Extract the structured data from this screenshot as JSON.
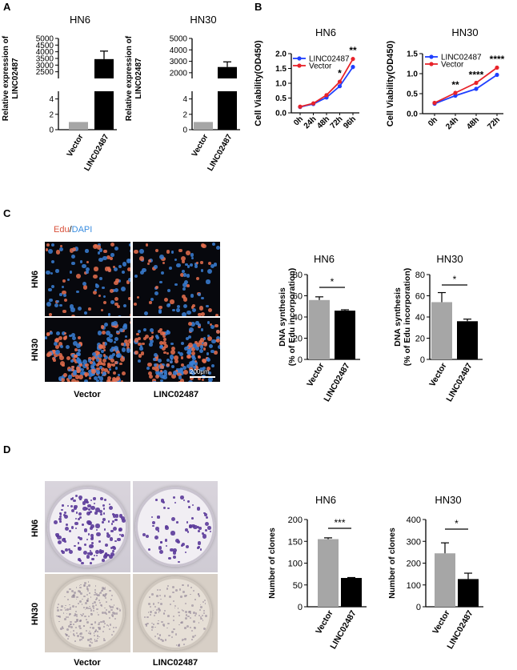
{
  "panels": {
    "A": {
      "letter": "A"
    },
    "B": {
      "letter": "B"
    },
    "C": {
      "letter": "C",
      "stain_edu": "Edu",
      "stain_sep": "/",
      "stain_dapi": "DAPI",
      "row_labels": [
        "HN6",
        "HN30"
      ],
      "col_labels": [
        "Vector",
        "LINC02487"
      ],
      "scale_bar": "200μm"
    },
    "D": {
      "letter": "D",
      "row_labels": [
        "HN6",
        "HN30"
      ],
      "col_labels": [
        "Vector",
        "LINC02487"
      ]
    }
  },
  "colors": {
    "vector_bar": "#a6a6a6",
    "linc_bar": "#000000",
    "linc_line": "#1f3fff",
    "vector_line": "#e8232a",
    "edu": "#d9503a",
    "dapi": "#3a8ee0",
    "colony": "#5b3a9a"
  },
  "chart_data": [
    {
      "id": "A-HN6",
      "type": "bar",
      "title": "HN6",
      "ylabel": "Relative expression of LINC02487",
      "categories": [
        "Vector",
        "LINC02487"
      ],
      "values": [
        1,
        3450
      ],
      "errors": [
        0,
        600
      ],
      "axis_break": {
        "lower": [
          0,
          5
        ],
        "upper": [
          2000,
          5000
        ]
      },
      "yticks_lower": [
        0,
        2,
        4
      ],
      "yticks_upper": [
        2500,
        3000,
        3500,
        4000,
        4500,
        5000
      ]
    },
    {
      "id": "A-HN30",
      "type": "bar",
      "title": "HN30",
      "ylabel": "Relative expression of LINC02487",
      "categories": [
        "Vector",
        "LINC02487"
      ],
      "values": [
        1,
        2500
      ],
      "errors": [
        0,
        450
      ],
      "axis_break": {
        "lower": [
          0,
          5
        ],
        "upper": [
          1500,
          5000
        ]
      },
      "yticks_lower": [
        0,
        2,
        4
      ],
      "yticks_upper": [
        2000,
        3000,
        4000,
        5000
      ]
    },
    {
      "id": "B-HN6",
      "type": "line",
      "title": "HN6",
      "ylabel": "Cell Viability(OD450)",
      "categories": [
        "0h",
        "24h",
        "48h",
        "72h",
        "96h"
      ],
      "ylim": [
        0,
        2.0
      ],
      "yticks": [
        "0.0",
        "0.5",
        "1.0",
        "1.5",
        "2.0"
      ],
      "series": [
        {
          "name": "LINC02487",
          "values": [
            0.2,
            0.3,
            0.52,
            0.9,
            1.55
          ],
          "errors": [
            0.02,
            0.02,
            0.03,
            0.04,
            0.07
          ]
        },
        {
          "name": "Vector",
          "values": [
            0.21,
            0.32,
            0.6,
            1.05,
            1.82
          ],
          "errors": [
            0.02,
            0.02,
            0.03,
            0.04,
            0.04
          ]
        }
      ],
      "annotations": [
        {
          "x": "72h",
          "text": "*"
        },
        {
          "x": "96h",
          "text": "**"
        }
      ]
    },
    {
      "id": "B-HN30",
      "type": "line",
      "title": "HN30",
      "ylabel": "Cell Viability(OD450)",
      "categories": [
        "0h",
        "24h",
        "48h",
        "72h"
      ],
      "ylim": [
        0,
        1.5
      ],
      "yticks": [
        "0.0",
        "0.5",
        "1.0",
        "1.5"
      ],
      "series": [
        {
          "name": "LINC02487",
          "values": [
            0.25,
            0.45,
            0.62,
            0.97
          ],
          "errors": [
            0.02,
            0.02,
            0.02,
            0.04
          ]
        },
        {
          "name": "Vector",
          "values": [
            0.27,
            0.52,
            0.77,
            1.15
          ],
          "errors": [
            0.02,
            0.02,
            0.02,
            0.03
          ]
        }
      ],
      "annotations": [
        {
          "x": "24h",
          "text": "**"
        },
        {
          "x": "48h",
          "text": "****"
        },
        {
          "x": "72h",
          "text": "****"
        }
      ]
    },
    {
      "id": "C-HN6",
      "type": "bar",
      "title": "HN6",
      "ylabel": "DNA synthesis\n(% of Edu incorporation)",
      "categories": [
        "Vector",
        "LINC02487"
      ],
      "values": [
        56,
        46
      ],
      "errors": [
        3,
        0.8
      ],
      "ylim": [
        0,
        80
      ],
      "yticks": [
        "0",
        "20",
        "40",
        "60",
        "80"
      ],
      "significance": "*"
    },
    {
      "id": "C-HN30",
      "type": "bar",
      "title": "HN30",
      "ylabel": "DNA synthesis\n(% of Edu incorporation)",
      "categories": [
        "Vector",
        "LINC02487"
      ],
      "values": [
        54,
        36
      ],
      "errors": [
        9,
        2
      ],
      "ylim": [
        0,
        80
      ],
      "yticks": [
        "0",
        "20",
        "40",
        "60",
        "80"
      ],
      "significance": "*"
    },
    {
      "id": "D-HN6",
      "type": "bar",
      "title": "HN6",
      "ylabel": "Number of clones",
      "categories": [
        "Vector",
        "LINC02487"
      ],
      "values": [
        155,
        66
      ],
      "errors": [
        3,
        1
      ],
      "ylim": [
        0,
        200
      ],
      "yticks": [
        "0",
        "50",
        "100",
        "150",
        "200"
      ],
      "significance": "***"
    },
    {
      "id": "D-HN30",
      "type": "bar",
      "title": "HN30",
      "ylabel": "Number of clones",
      "categories": [
        "Vector",
        "LINC02487"
      ],
      "values": [
        245,
        127
      ],
      "errors": [
        48,
        27
      ],
      "ylim": [
        0,
        400
      ],
      "yticks": [
        "0",
        "100",
        "200",
        "300",
        "400"
      ],
      "significance": "*"
    }
  ]
}
